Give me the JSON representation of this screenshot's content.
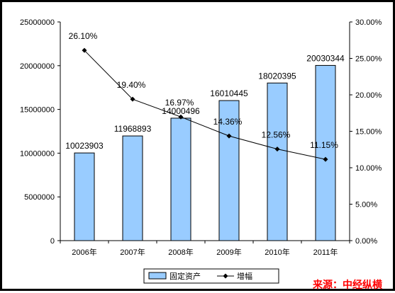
{
  "chart_data": {
    "type": "bar",
    "categories": [
      "2006年",
      "2007年",
      "2008年",
      "2009年",
      "2010年",
      "2011年"
    ],
    "series": [
      {
        "name": "固定资产",
        "type": "bar",
        "axis": "left",
        "values": [
          10023903,
          11968893,
          14000496,
          16010445,
          18020395,
          20030344
        ],
        "labels": [
          "10023903",
          "11968893",
          "14000496",
          "16010445",
          "18020395",
          "20030344"
        ],
        "color": "#99ccff"
      },
      {
        "name": "增幅",
        "type": "line",
        "axis": "right",
        "values": [
          26.1,
          19.4,
          16.97,
          14.36,
          12.56,
          11.15
        ],
        "labels": [
          "26.10%",
          "19.40%",
          "16.97%",
          "14.36%",
          "12.56%",
          "11.15%"
        ],
        "color": "#000000"
      }
    ],
    "y_left": {
      "range": [
        0,
        25000000
      ],
      "ticks": [
        0,
        5000000,
        10000000,
        15000000,
        20000000,
        25000000
      ],
      "tick_labels": [
        "0",
        "5000000",
        "10000000",
        "15000000",
        "20000000",
        "25000000"
      ]
    },
    "y_right": {
      "range": [
        0,
        30
      ],
      "ticks": [
        0,
        5,
        10,
        15,
        20,
        25,
        30
      ],
      "tick_labels": [
        "0.00%",
        "5.00%",
        "10.00%",
        "15.00%",
        "20.00%",
        "25.00%",
        "30.00%"
      ]
    },
    "title": "",
    "xlabel": "",
    "ylabel": "",
    "grid": false,
    "legend": {
      "position": "bottom",
      "entries": [
        "固定资产",
        "增幅"
      ]
    }
  },
  "source_note": "来源：中经纵横",
  "colors": {
    "bar_fill": "#99ccff",
    "bar_stroke": "#000000",
    "line": "#000000",
    "source": "#ff0000"
  }
}
